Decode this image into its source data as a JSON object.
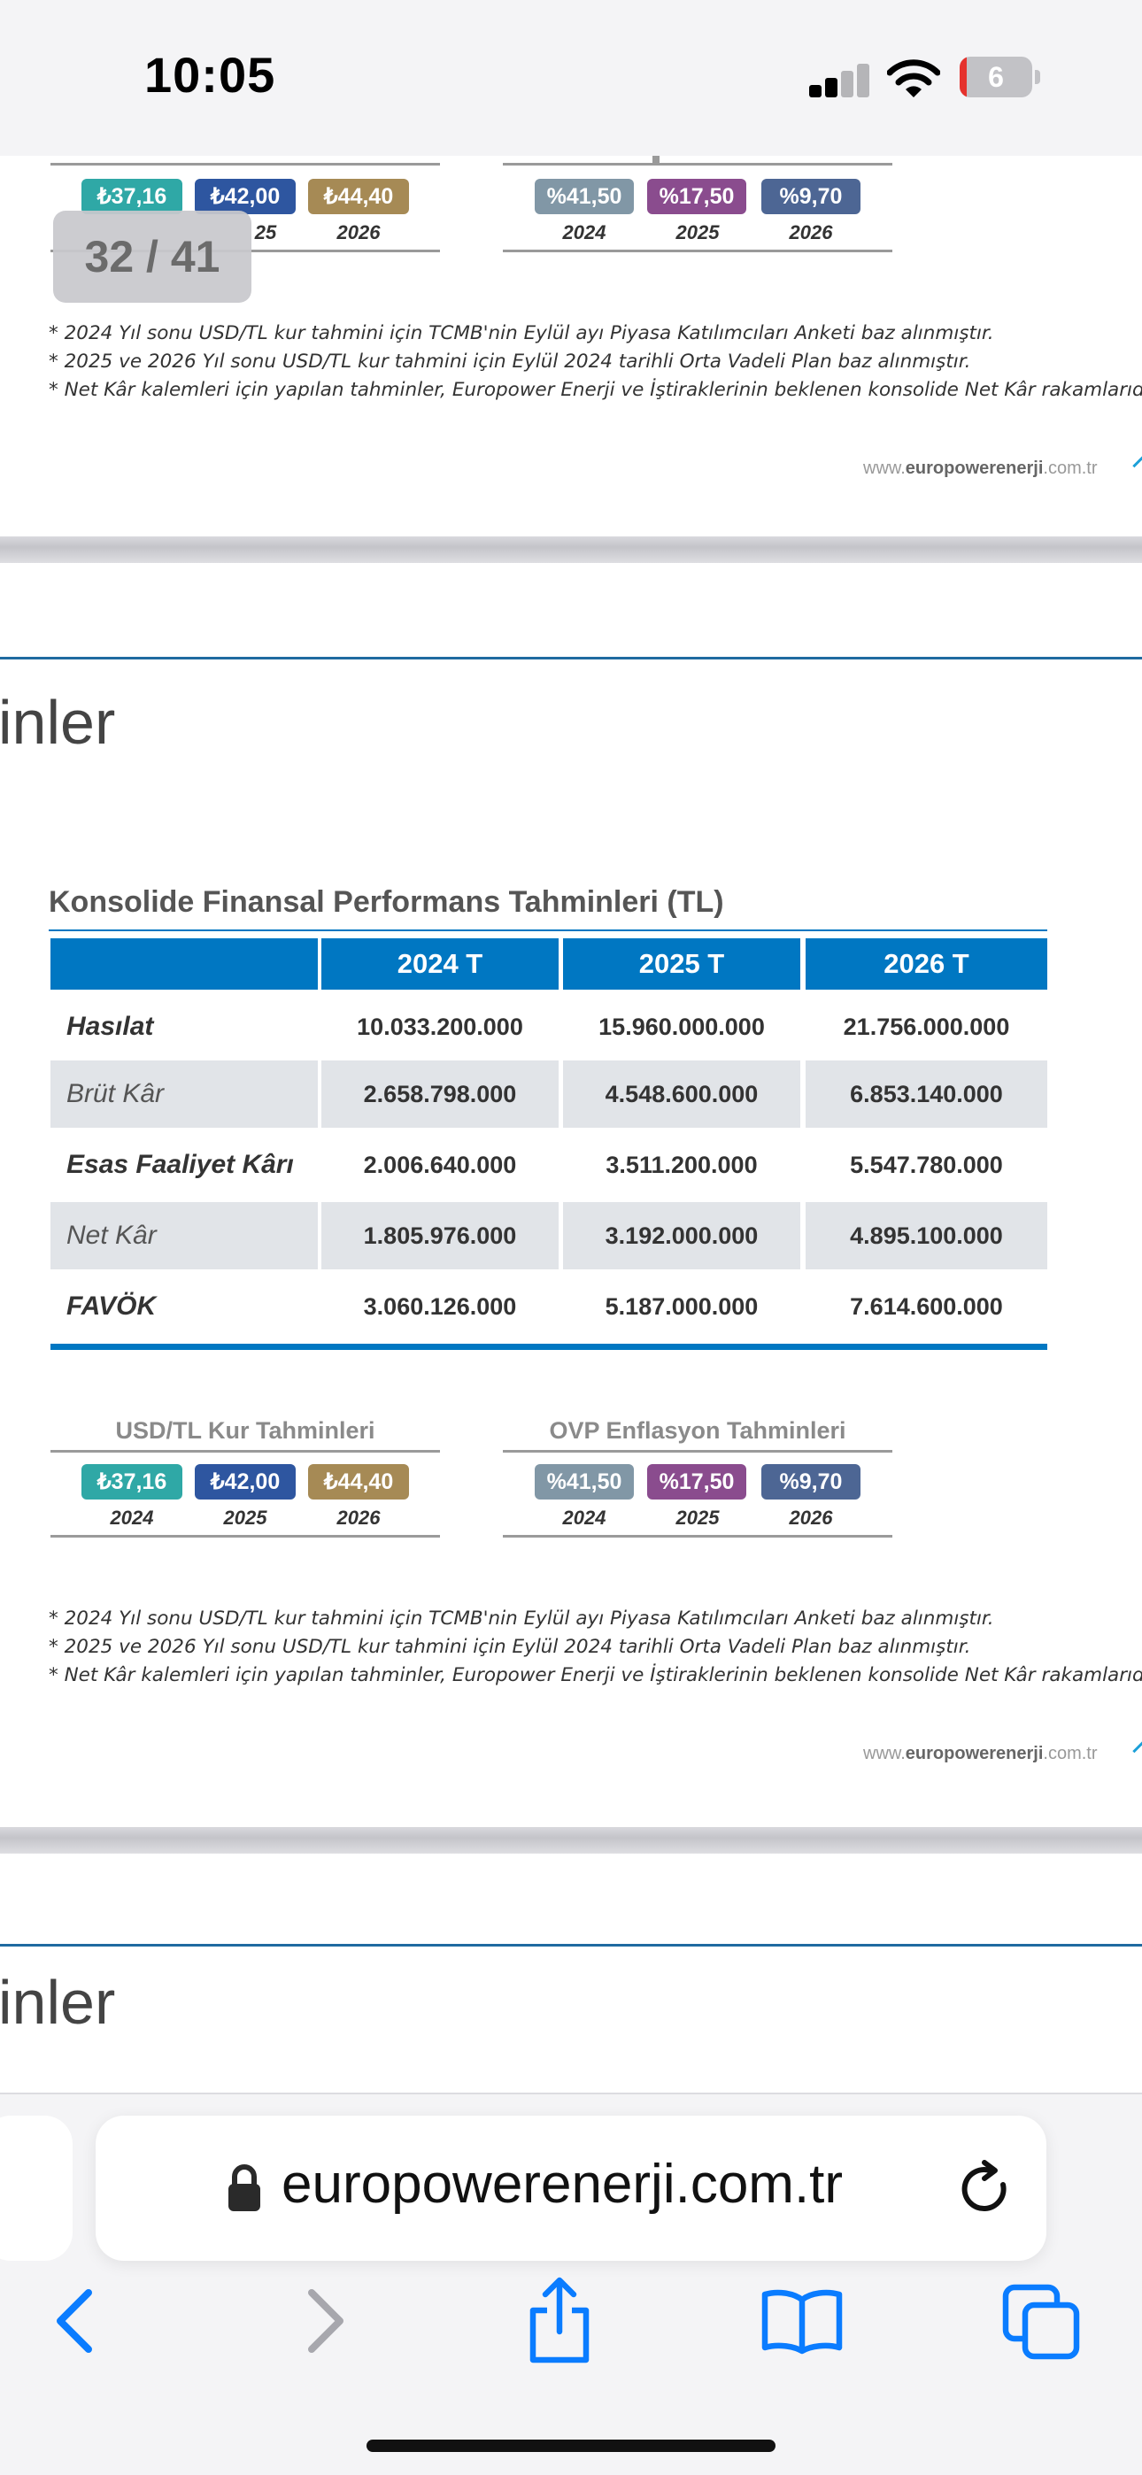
{
  "status_bar": {
    "time": "10:05",
    "battery": "6"
  },
  "page_counter": "32 / 41",
  "top_fragment": {
    "kur_badges": [
      "₺37,16",
      "₺42,00",
      "₺44,40"
    ],
    "kur_years_visible": [
      "25",
      "2026"
    ],
    "enf_badges": [
      "%41,50",
      "%17,50",
      "%9,70"
    ],
    "enf_years": [
      "2024",
      "2025",
      "2026"
    ],
    "footnotes": [
      "* 2024 Yıl sonu USD/TL kur  tahmini için TCMB'nin Eylül ayı  Piyasa Katılımcıları Anketi baz alınmıştır.",
      "* 2025 ve 2026 Yıl sonu USD/TL kur tahmini için Eylül 2024 tarihli Orta Vadeli Plan baz alınmıştır.",
      "* Net Kâr kalemleri için yapılan tahminler, Europower Enerji ve İştiraklerinin beklenen konsolide Net Kâr rakamlarıdır."
    ],
    "website_prefix": "www.",
    "website_brand": "europowerenerji",
    "website_suffix": ".com.tr"
  },
  "main_page": {
    "heading_fragment": "inler",
    "table_title": "Konsolide Finansal Performans Tahminleri (TL)",
    "columns": [
      "2024 T",
      "2025 T",
      "2026 T"
    ],
    "rows": [
      {
        "label": "Hasılat",
        "values": [
          "10.033.200.000",
          "15.960.000.000",
          "21.756.000.000"
        ]
      },
      {
        "label": "Brüt Kâr",
        "values": [
          "2.658.798.000",
          "4.548.600.000",
          "6.853.140.000"
        ]
      },
      {
        "label": "Esas Faaliyet Kârı",
        "values": [
          "2.006.640.000",
          "3.511.200.000",
          "5.547.780.000"
        ]
      },
      {
        "label": "Net Kâr",
        "values": [
          "1.805.976.000",
          "3.192.000.000",
          "4.895.100.000"
        ]
      },
      {
        "label": "FAVÖK",
        "values": [
          "3.060.126.000",
          "5.187.000.000",
          "7.614.600.000"
        ]
      }
    ],
    "kur_title": "USD/TL Kur Tahminleri",
    "kur_badges": [
      "₺37,16",
      "₺42,00",
      "₺44,40"
    ],
    "kur_years": [
      "2024",
      "2025",
      "2026"
    ],
    "enf_title": "OVP Enflasyon Tahminleri",
    "enf_badges": [
      "%41,50",
      "%17,50",
      "%9,70"
    ],
    "enf_years": [
      "2024",
      "2025",
      "2026"
    ],
    "footnotes": [
      "* 2024 Yıl sonu USD/TL kur  tahmini için TCMB'nin Eylül ayı  Piyasa Katılımcıları Anketi baz alınmıştır.",
      "* 2025 ve 2026 Yıl sonu USD/TL kur tahmini için Eylül 2024 tarihli Orta Vadeli Plan baz alınmıştır.",
      "* Net Kâr kalemleri için yapılan tahminler, Europower Enerji ve İştiraklerinin beklenen konsolide Net Kâr rakamlarıdır."
    ]
  },
  "next_page": {
    "heading_fragment": "inler"
  },
  "browser": {
    "url": "europowerenerji.com.tr",
    "icons": [
      "lock-icon",
      "reload-icon",
      "back-icon",
      "forward-icon",
      "share-icon",
      "bookmarks-icon",
      "tabs-icon"
    ]
  },
  "colors": {
    "table_header": "#0077c2",
    "kur_badges": [
      "#2fa8a6",
      "#2e56a0",
      "#a68a55"
    ],
    "enf_badges": [
      "#8197a6",
      "#8a4c8e",
      "#4d6694"
    ],
    "ios_blue": "#0a7cff"
  }
}
